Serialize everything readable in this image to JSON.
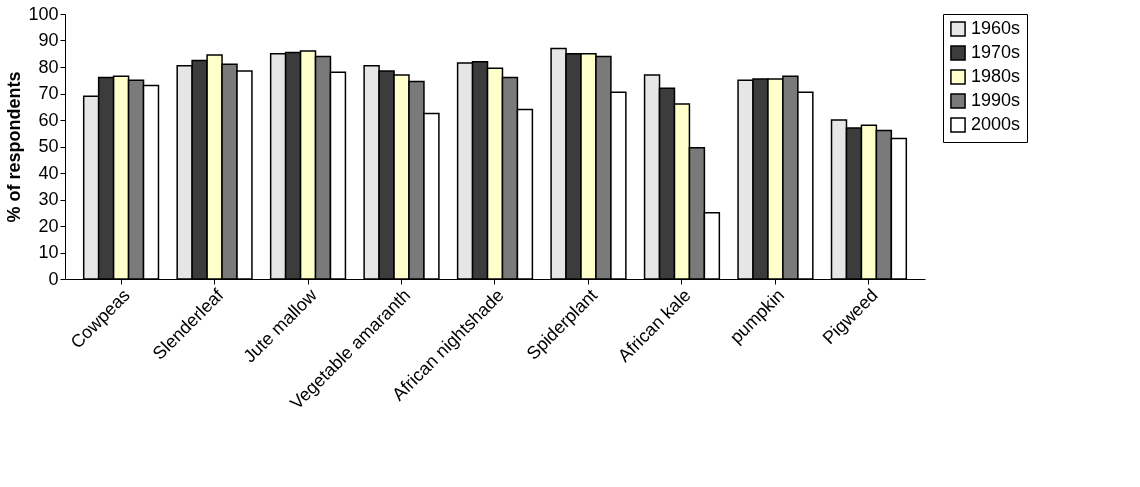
{
  "chart_data": {
    "type": "bar",
    "ylabel": "% of respondents",
    "categories": [
      "Cowpeas",
      "Slenderleaf",
      "Jute mallow",
      "Vegetable amaranth",
      "African nightshade",
      "Spiderplant",
      "African kale",
      "pumpkin",
      "Pigweed"
    ],
    "series": [
      {
        "name": "1960s",
        "color": "#e6e6e6",
        "values": [
          69,
          80.5,
          85,
          80.5,
          81.5,
          87,
          77,
          75,
          60
        ]
      },
      {
        "name": "1970s",
        "color": "#3c3c3c",
        "values": [
          76,
          82.5,
          85.5,
          78.5,
          82,
          85,
          72,
          75.5,
          57
        ]
      },
      {
        "name": "1980s",
        "color": "#ffffcc",
        "values": [
          76.5,
          84.5,
          86,
          77,
          79.5,
          85,
          66,
          75.5,
          58
        ]
      },
      {
        "name": "1990s",
        "color": "#7a7a7a",
        "values": [
          75,
          81,
          84,
          74.5,
          76,
          84,
          49.5,
          76.5,
          56
        ]
      },
      {
        "name": "2000s",
        "color": "#ffffff",
        "values": [
          73,
          78.5,
          78,
          62.5,
          64,
          70.5,
          25,
          70.5,
          53
        ]
      }
    ],
    "ylim": [
      0,
      100
    ],
    "yticks": [
      0,
      10,
      20,
      30,
      40,
      50,
      60,
      70,
      80,
      90,
      100
    ],
    "grid": false,
    "legend": "right"
  }
}
